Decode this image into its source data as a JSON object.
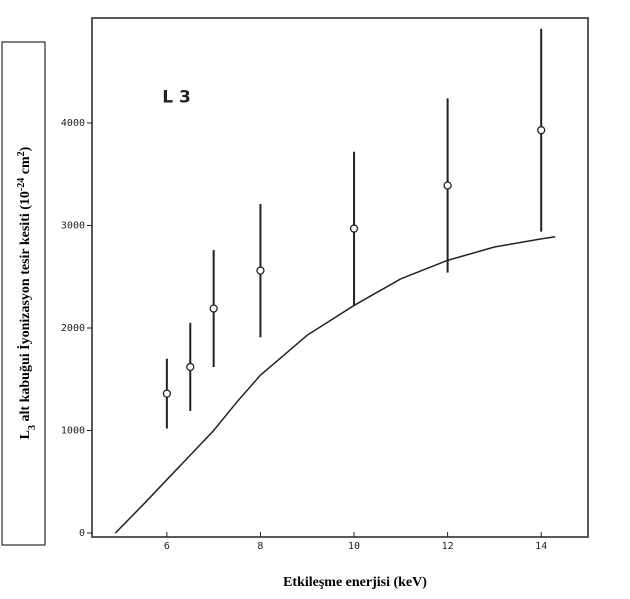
{
  "chart_data": {
    "type": "scatter",
    "ylabel_parts": [
      "L",
      "3",
      " alt kabuğui İyonizasyon tesir kesiti (10",
      "-24",
      " cm",
      "2",
      ")"
    ],
    "xlabel": "Etkileşme enerjisi (keV)",
    "annotation": "L 3",
    "annotation_x": 5.9,
    "annotation_y": 4250,
    "xlim": [
      4.4,
      15
    ],
    "ylim": [
      0,
      5000
    ],
    "xticks": [
      6,
      8,
      10,
      12,
      14
    ],
    "yticks": [
      0,
      1000,
      2000,
      3000,
      4000
    ],
    "color": "#222222",
    "series": [
      {
        "kind": "points",
        "x": [
          6,
          6.5,
          7,
          8,
          10,
          12,
          14
        ],
        "values": [
          1360,
          1620,
          2190,
          2560,
          2970,
          3390,
          3930
        ],
        "errors": [
          340,
          430,
          570,
          650,
          750,
          850,
          990
        ]
      },
      {
        "kind": "curve",
        "x": [
          4.9,
          5.5,
          6,
          6.5,
          7,
          7.5,
          8,
          9,
          10,
          11,
          12,
          13,
          14,
          14.3
        ],
        "values": [
          0,
          280,
          520,
          760,
          1000,
          1280,
          1540,
          1930,
          2220,
          2480,
          2660,
          2790,
          2870,
          2890
        ]
      }
    ]
  }
}
